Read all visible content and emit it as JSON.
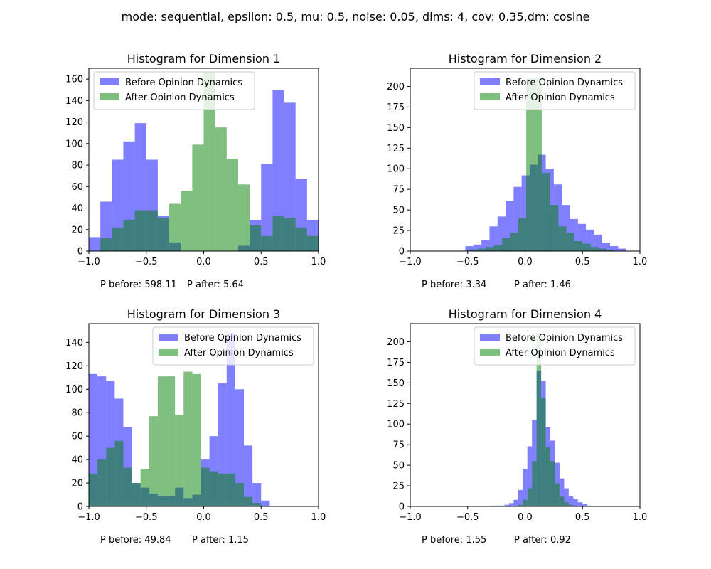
{
  "suptitle": "mode: sequential, epsilon: 0.5, mu: 0.5, noise: 0.05, dims: 4, cov: 0.35,dm: cosine",
  "colors": {
    "before": "#0000ff",
    "after": "#008000",
    "bar_alpha": 0.5
  },
  "chart_data": [
    {
      "type": "bar",
      "title": "Histogram for Dimension 1",
      "xlim": [
        -1.0,
        1.0
      ],
      "ylim": [
        0,
        170
      ],
      "xticks": [
        "−1.0",
        "−0.5",
        "0.0",
        "0.5",
        "1.0"
      ],
      "xtick_values": [
        -1.0,
        -0.5,
        0.0,
        0.5,
        1.0
      ],
      "yticks": [
        0,
        20,
        40,
        60,
        80,
        100,
        120,
        140,
        160
      ],
      "legend": {
        "location": "upper left",
        "labels": [
          "Before Opinion Dynamics",
          "After Opinion Dynamics"
        ]
      },
      "series": [
        {
          "name": "Before Opinion Dynamics",
          "bins": [
            [
              -1.0,
              -0.9,
              13
            ],
            [
              -0.9,
              -0.8,
              46
            ],
            [
              -0.8,
              -0.7,
              85
            ],
            [
              -0.7,
              -0.6,
              102
            ],
            [
              -0.6,
              -0.5,
              119
            ],
            [
              -0.5,
              -0.4,
              85
            ],
            [
              -0.4,
              -0.3,
              33
            ],
            [
              -0.3,
              -0.2,
              8
            ],
            [
              -0.2,
              0.3,
              0
            ],
            [
              0.3,
              0.4,
              5
            ],
            [
              0.4,
              0.5,
              29
            ],
            [
              0.5,
              0.6,
              81
            ],
            [
              0.6,
              0.7,
              150
            ],
            [
              0.7,
              0.8,
              138
            ],
            [
              0.8,
              0.9,
              67
            ],
            [
              0.9,
              1.0,
              29
            ]
          ]
        },
        {
          "name": "After Opinion Dynamics",
          "bins": [
            [
              -0.9,
              -0.8,
              12
            ],
            [
              -0.8,
              -0.7,
              22
            ],
            [
              -0.7,
              -0.6,
              29
            ],
            [
              -0.6,
              -0.5,
              38
            ],
            [
              -0.5,
              -0.4,
              38
            ],
            [
              -0.4,
              -0.3,
              31
            ],
            [
              -0.3,
              -0.2,
              44
            ],
            [
              -0.2,
              -0.1,
              56
            ],
            [
              -0.1,
              0.0,
              99
            ],
            [
              0.0,
              0.1,
              167
            ],
            [
              0.1,
              0.2,
              115
            ],
            [
              0.2,
              0.3,
              86
            ],
            [
              0.3,
              0.4,
              62
            ],
            [
              0.4,
              0.5,
              24
            ],
            [
              0.5,
              0.6,
              14
            ],
            [
              0.6,
              0.7,
              33
            ],
            [
              0.7,
              0.8,
              31
            ],
            [
              0.8,
              0.9,
              22
            ],
            [
              0.9,
              1.0,
              14
            ]
          ]
        }
      ],
      "annotation_before": "P before: 598.11",
      "annotation_after": "P after: 5.64"
    },
    {
      "type": "bar",
      "title": "Histogram for Dimension 2",
      "xlim": [
        -1.0,
        1.0
      ],
      "ylim": [
        0,
        222
      ],
      "xticks": [
        "−1.0",
        "−0.5",
        "0.0",
        "0.5",
        "1.0"
      ],
      "xtick_values": [
        -1.0,
        -0.5,
        0.0,
        0.5,
        1.0
      ],
      "yticks": [
        0,
        25,
        50,
        75,
        100,
        125,
        150,
        175,
        200
      ],
      "legend": {
        "location": "upper right",
        "labels": [
          "Before Opinion Dynamics",
          "After Opinion Dynamics"
        ]
      },
      "series": [
        {
          "name": "Before Opinion Dynamics",
          "bins": [
            [
              -0.52,
              -0.45,
              6
            ],
            [
              -0.45,
              -0.38,
              8
            ],
            [
              -0.38,
              -0.31,
              13
            ],
            [
              -0.31,
              -0.24,
              30
            ],
            [
              -0.24,
              -0.17,
              42
            ],
            [
              -0.17,
              -0.1,
              61
            ],
            [
              -0.1,
              -0.03,
              78
            ],
            [
              -0.03,
              0.04,
              92
            ],
            [
              0.04,
              0.11,
              105
            ],
            [
              0.11,
              0.18,
              117
            ],
            [
              0.18,
              0.25,
              100
            ],
            [
              0.25,
              0.32,
              81
            ],
            [
              0.32,
              0.39,
              56
            ],
            [
              0.39,
              0.46,
              39
            ],
            [
              0.46,
              0.53,
              33
            ],
            [
              0.53,
              0.6,
              26
            ],
            [
              0.6,
              0.67,
              20
            ],
            [
              0.67,
              0.74,
              10
            ],
            [
              0.74,
              0.81,
              6
            ],
            [
              0.81,
              0.88,
              3
            ]
          ]
        },
        {
          "name": "After Opinion Dynamics",
          "bins": [
            [
              -0.48,
              -0.41,
              2
            ],
            [
              -0.41,
              -0.34,
              3
            ],
            [
              -0.34,
              -0.27,
              5
            ],
            [
              -0.27,
              -0.2,
              7
            ],
            [
              -0.2,
              -0.13,
              16
            ],
            [
              -0.13,
              -0.06,
              22
            ],
            [
              -0.06,
              0.01,
              40
            ],
            [
              0.01,
              0.08,
              210
            ],
            [
              0.08,
              0.15,
              210
            ],
            [
              0.15,
              0.22,
              95
            ],
            [
              0.22,
              0.29,
              56
            ],
            [
              0.29,
              0.36,
              30
            ],
            [
              0.36,
              0.43,
              22
            ],
            [
              0.43,
              0.5,
              12
            ],
            [
              0.5,
              0.57,
              9
            ],
            [
              0.57,
              0.64,
              5
            ],
            [
              0.64,
              0.71,
              3
            ],
            [
              0.71,
              0.78,
              1
            ]
          ]
        }
      ],
      "annotation_before": "P before: 3.34",
      "annotation_after": "P after: 1.46"
    },
    {
      "type": "bar",
      "title": "Histogram for Dimension 3",
      "xlim": [
        -1.0,
        1.0
      ],
      "ylim": [
        0,
        156
      ],
      "xticks": [
        "−1.0",
        "−0.5",
        "0.0",
        "0.5",
        "1.0"
      ],
      "xtick_values": [
        -1.0,
        -0.5,
        0.0,
        0.5,
        1.0
      ],
      "yticks": [
        0,
        20,
        40,
        60,
        80,
        100,
        120,
        140
      ],
      "legend": {
        "location": "upper right",
        "labels": [
          "Before Opinion Dynamics",
          "After Opinion Dynamics"
        ]
      },
      "series": [
        {
          "name": "Before Opinion Dynamics",
          "bins": [
            [
              -1.0,
              -0.925,
              113
            ],
            [
              -0.925,
              -0.85,
              111
            ],
            [
              -0.85,
              -0.775,
              107
            ],
            [
              -0.775,
              -0.7,
              92
            ],
            [
              -0.7,
              -0.625,
              68
            ],
            [
              -0.625,
              -0.55,
              20
            ],
            [
              -0.55,
              -0.475,
              16
            ],
            [
              -0.475,
              -0.4,
              11
            ],
            [
              -0.4,
              -0.325,
              9
            ],
            [
              -0.325,
              -0.25,
              9
            ],
            [
              -0.25,
              -0.175,
              16
            ],
            [
              -0.175,
              -0.1,
              7
            ],
            [
              -0.1,
              -0.025,
              10
            ],
            [
              -0.025,
              0.05,
              40
            ],
            [
              0.05,
              0.125,
              60
            ],
            [
              0.125,
              0.2,
              105
            ],
            [
              0.2,
              0.275,
              148
            ],
            [
              0.275,
              0.35,
              100
            ],
            [
              0.35,
              0.425,
              52
            ],
            [
              0.425,
              0.5,
              20
            ],
            [
              0.5,
              0.575,
              5
            ]
          ]
        },
        {
          "name": "After Opinion Dynamics",
          "bins": [
            [
              -1.0,
              -0.925,
              28
            ],
            [
              -0.925,
              -0.85,
              40
            ],
            [
              -0.85,
              -0.775,
              50
            ],
            [
              -0.775,
              -0.7,
              56
            ],
            [
              -0.7,
              -0.625,
              33
            ],
            [
              -0.625,
              -0.55,
              20
            ],
            [
              -0.55,
              -0.475,
              32
            ],
            [
              -0.475,
              -0.4,
              77
            ],
            [
              -0.4,
              -0.325,
              111
            ],
            [
              -0.325,
              -0.25,
              111
            ],
            [
              -0.25,
              -0.175,
              78
            ],
            [
              -0.175,
              -0.1,
              115
            ],
            [
              -0.1,
              -0.025,
              113
            ],
            [
              -0.025,
              0.05,
              33
            ],
            [
              0.05,
              0.125,
              30
            ],
            [
              0.125,
              0.2,
              28
            ],
            [
              0.2,
              0.275,
              28
            ],
            [
              0.275,
              0.35,
              20
            ],
            [
              0.35,
              0.425,
              8
            ],
            [
              0.425,
              0.5,
              3
            ]
          ]
        }
      ],
      "annotation_before": "P before: 49.84",
      "annotation_after": "P after: 1.15"
    },
    {
      "type": "bar",
      "title": "Histogram for Dimension 4",
      "xlim": [
        -1.0,
        1.0
      ],
      "ylim": [
        0,
        222
      ],
      "xticks": [
        "−1.0",
        "−0.5",
        "0.0",
        "0.5",
        "1.0"
      ],
      "xtick_values": [
        -1.0,
        -0.5,
        0.0,
        0.5,
        1.0
      ],
      "yticks": [
        0,
        25,
        50,
        75,
        100,
        125,
        150,
        175,
        200
      ],
      "legend": {
        "location": "upper right",
        "labels": [
          "Before Opinion Dynamics",
          "After Opinion Dynamics"
        ]
      },
      "series": [
        {
          "name": "Before Opinion Dynamics",
          "bins": [
            [
              -0.3,
              -0.26,
              1
            ],
            [
              -0.26,
              -0.22,
              1
            ],
            [
              -0.22,
              -0.18,
              1
            ],
            [
              -0.18,
              -0.14,
              2
            ],
            [
              -0.14,
              -0.1,
              4
            ],
            [
              -0.1,
              -0.06,
              8
            ],
            [
              -0.06,
              -0.02,
              20
            ],
            [
              -0.02,
              0.02,
              45
            ],
            [
              0.02,
              0.06,
              73
            ],
            [
              0.06,
              0.1,
              105
            ],
            [
              0.1,
              0.14,
              165
            ],
            [
              0.14,
              0.18,
              152
            ],
            [
              0.18,
              0.22,
              96
            ],
            [
              0.22,
              0.26,
              80
            ],
            [
              0.26,
              0.3,
              53
            ],
            [
              0.3,
              0.34,
              34
            ],
            [
              0.34,
              0.38,
              22
            ],
            [
              0.38,
              0.42,
              12
            ],
            [
              0.42,
              0.46,
              9
            ],
            [
              0.46,
              0.5,
              5
            ],
            [
              0.5,
              0.54,
              3
            ],
            [
              0.54,
              0.58,
              1
            ]
          ]
        },
        {
          "name": "After Opinion Dynamics",
          "bins": [
            [
              -0.06,
              -0.02,
              2
            ],
            [
              -0.02,
              0.02,
              8
            ],
            [
              0.02,
              0.06,
              22
            ],
            [
              0.06,
              0.1,
              55
            ],
            [
              0.1,
              0.14,
              210
            ],
            [
              0.14,
              0.18,
              132
            ],
            [
              0.18,
              0.22,
              72
            ],
            [
              0.22,
              0.26,
              55
            ],
            [
              0.26,
              0.3,
              28
            ],
            [
              0.3,
              0.34,
              12
            ],
            [
              0.34,
              0.38,
              5
            ],
            [
              0.38,
              0.42,
              2
            ]
          ]
        }
      ],
      "annotation_before": "P before: 1.55",
      "annotation_after": "P after: 0.92"
    }
  ]
}
